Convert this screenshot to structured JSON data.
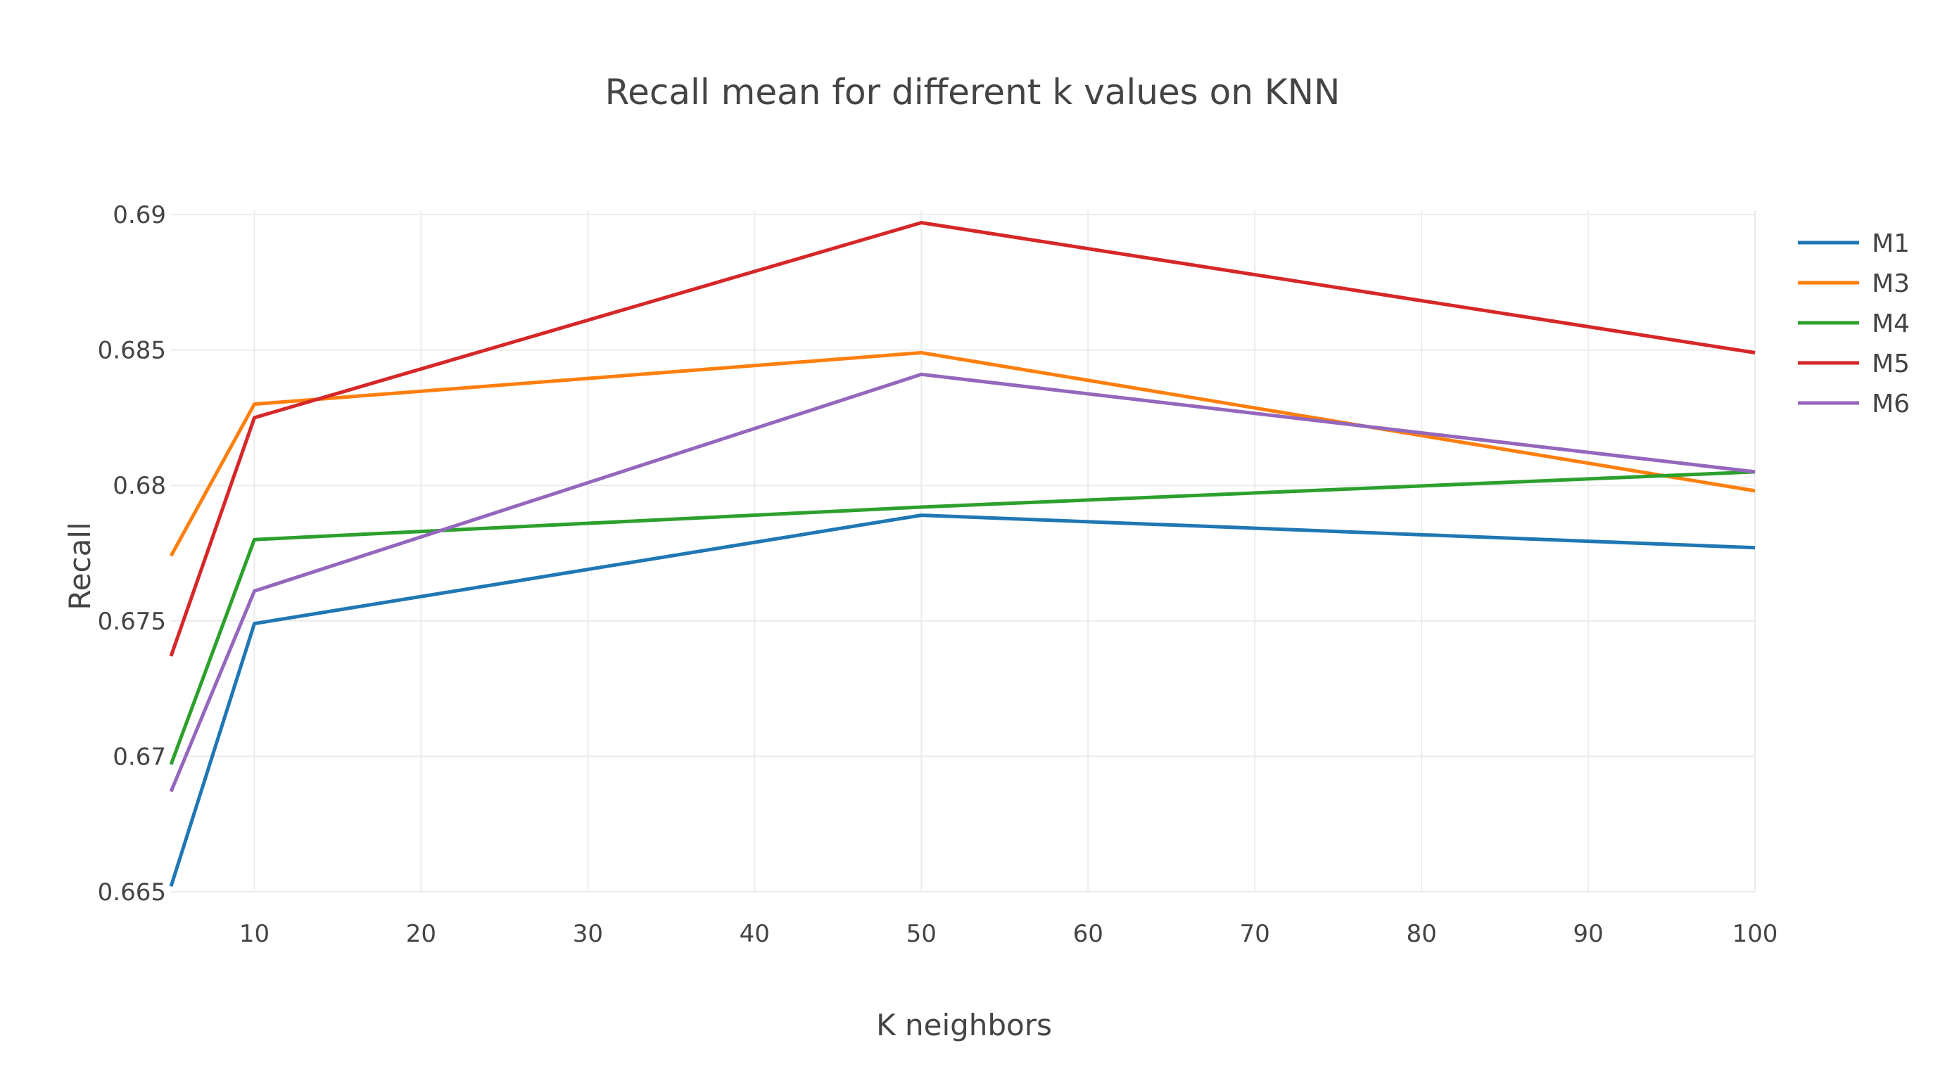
{
  "chart_data": {
    "type": "line",
    "title": "Recall mean for different k values on KNN",
    "xlabel": "K neighbors",
    "ylabel": "Recall",
    "x": [
      5,
      10,
      50,
      100
    ],
    "xlim": [
      5,
      100
    ],
    "ylim": [
      0.665,
      0.69
    ],
    "xticks": [
      {
        "value": 10,
        "label": "10"
      },
      {
        "value": 20,
        "label": "20"
      },
      {
        "value": 30,
        "label": "30"
      },
      {
        "value": 40,
        "label": "40"
      },
      {
        "value": 50,
        "label": "50"
      },
      {
        "value": 60,
        "label": "60"
      },
      {
        "value": 70,
        "label": "70"
      },
      {
        "value": 80,
        "label": "80"
      },
      {
        "value": 90,
        "label": "90"
      },
      {
        "value": 100,
        "label": "100"
      }
    ],
    "yticks": [
      {
        "value": 0.665,
        "label": "0.665"
      },
      {
        "value": 0.67,
        "label": "0.67"
      },
      {
        "value": 0.675,
        "label": "0.675"
      },
      {
        "value": 0.68,
        "label": "0.68"
      },
      {
        "value": 0.685,
        "label": "0.685"
      },
      {
        "value": 0.69,
        "label": "0.69"
      }
    ],
    "grid": true,
    "legend_position": "top-right",
    "series": [
      {
        "name": "M1",
        "color": "#1f77b4",
        "values": [
          0.6652,
          0.6749,
          0.6789,
          0.6777
        ]
      },
      {
        "name": "M3",
        "color": "#ff7f0e",
        "values": [
          0.6774,
          0.683,
          0.6849,
          0.6798
        ]
      },
      {
        "name": "M4",
        "color": "#2ca02c",
        "values": [
          0.6697,
          0.678,
          0.6792,
          0.6805
        ]
      },
      {
        "name": "M5",
        "color": "#d62728",
        "values": [
          0.6737,
          0.6825,
          0.6897,
          0.6849
        ]
      },
      {
        "name": "M6",
        "color": "#9467bd",
        "values": [
          0.6687,
          0.6761,
          0.6841,
          0.6805
        ]
      }
    ]
  }
}
